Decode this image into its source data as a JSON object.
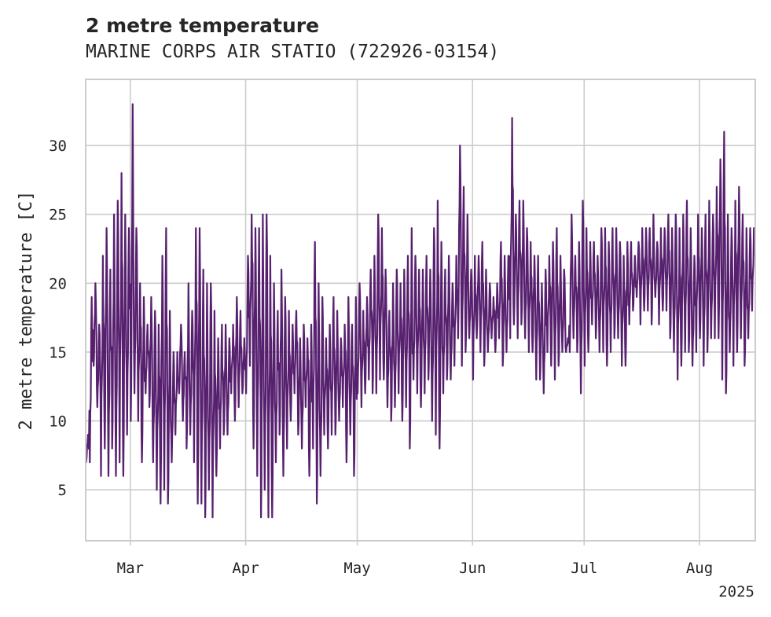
{
  "chart_data": {
    "type": "line",
    "title": "2 metre temperature",
    "subtitle": "MARINE CORPS AIR STATIO (722926-03154)",
    "xlabel": "",
    "ylabel": "2 metre temperature [C]",
    "x_range": [
      "2025-02-17",
      "2025-08-16"
    ],
    "ylim": [
      1.3,
      34.8
    ],
    "x_ticks": [
      {
        "date": "2025-03-01",
        "label": "Mar"
      },
      {
        "date": "2025-04-01",
        "label": "Apr"
      },
      {
        "date": "2025-05-01",
        "label": "May"
      },
      {
        "date": "2025-06-01",
        "label": "Jun"
      },
      {
        "date": "2025-07-01",
        "label": "Jul"
      },
      {
        "date": "2025-08-01",
        "label": "Aug"
      }
    ],
    "x_offset_label": "2025",
    "y_ticks": [
      5,
      10,
      15,
      20,
      25,
      30
    ],
    "grid": true,
    "color": "#57206f",
    "series": [
      {
        "name": "",
        "x": [
          "2025-02-17",
          "2025-02-18",
          "2025-02-19",
          "2025-02-20",
          "2025-02-21",
          "2025-02-22",
          "2025-02-23",
          "2025-02-24",
          "2025-02-25",
          "2025-02-26",
          "2025-02-27",
          "2025-02-28",
          "2025-03-01",
          "2025-03-02",
          "2025-03-03",
          "2025-03-04",
          "2025-03-05",
          "2025-03-06",
          "2025-03-07",
          "2025-03-08",
          "2025-03-09",
          "2025-03-10",
          "2025-03-11",
          "2025-03-12",
          "2025-03-13",
          "2025-03-14",
          "2025-03-15",
          "2025-03-16",
          "2025-03-17",
          "2025-03-18",
          "2025-03-19",
          "2025-03-20",
          "2025-03-21",
          "2025-03-22",
          "2025-03-23",
          "2025-03-24",
          "2025-03-25",
          "2025-03-26",
          "2025-03-27",
          "2025-03-28",
          "2025-03-29",
          "2025-03-30",
          "2025-03-31",
          "2025-04-01",
          "2025-04-02",
          "2025-04-03",
          "2025-04-04",
          "2025-04-05",
          "2025-04-06",
          "2025-04-07",
          "2025-04-08",
          "2025-04-09",
          "2025-04-10",
          "2025-04-11",
          "2025-04-12",
          "2025-04-13",
          "2025-04-14",
          "2025-04-15",
          "2025-04-16",
          "2025-04-17",
          "2025-04-18",
          "2025-04-19",
          "2025-04-20",
          "2025-04-21",
          "2025-04-22",
          "2025-04-23",
          "2025-04-24",
          "2025-04-25",
          "2025-04-26",
          "2025-04-27",
          "2025-04-28",
          "2025-04-29",
          "2025-04-30",
          "2025-05-01",
          "2025-05-02",
          "2025-05-03",
          "2025-05-04",
          "2025-05-05",
          "2025-05-06",
          "2025-05-07",
          "2025-05-08",
          "2025-05-09",
          "2025-05-10",
          "2025-05-11",
          "2025-05-12",
          "2025-05-13",
          "2025-05-14",
          "2025-05-15",
          "2025-05-16",
          "2025-05-17",
          "2025-05-18",
          "2025-05-19",
          "2025-05-20",
          "2025-05-21",
          "2025-05-22",
          "2025-05-23",
          "2025-05-24",
          "2025-05-25",
          "2025-05-26",
          "2025-05-27",
          "2025-05-28",
          "2025-05-29",
          "2025-05-30",
          "2025-05-31",
          "2025-06-01",
          "2025-06-02",
          "2025-06-03",
          "2025-06-04",
          "2025-06-05",
          "2025-06-06",
          "2025-06-07",
          "2025-06-08",
          "2025-06-09",
          "2025-06-10",
          "2025-06-11",
          "2025-06-12",
          "2025-06-13",
          "2025-06-14",
          "2025-06-15",
          "2025-06-16",
          "2025-06-17",
          "2025-06-18",
          "2025-06-19",
          "2025-06-20",
          "2025-06-21",
          "2025-06-22",
          "2025-06-23",
          "2025-06-24",
          "2025-06-25",
          "2025-06-26",
          "2025-06-27",
          "2025-06-28",
          "2025-06-29",
          "2025-06-30",
          "2025-07-01",
          "2025-07-02",
          "2025-07-03",
          "2025-07-04",
          "2025-07-05",
          "2025-07-06",
          "2025-07-07",
          "2025-07-08",
          "2025-07-09",
          "2025-07-10",
          "2025-07-11",
          "2025-07-12",
          "2025-07-13",
          "2025-07-14",
          "2025-07-15",
          "2025-07-16",
          "2025-07-17",
          "2025-07-18",
          "2025-07-19",
          "2025-07-20",
          "2025-07-21",
          "2025-07-22",
          "2025-07-23",
          "2025-07-24",
          "2025-07-25",
          "2025-07-26",
          "2025-07-27",
          "2025-07-28",
          "2025-07-29",
          "2025-07-30",
          "2025-07-31",
          "2025-08-01",
          "2025-08-02",
          "2025-08-03",
          "2025-08-04",
          "2025-08-05",
          "2025-08-06",
          "2025-08-07",
          "2025-08-08",
          "2025-08-09",
          "2025-08-10",
          "2025-08-11",
          "2025-08-12",
          "2025-08-13",
          "2025-08-14",
          "2025-08-15"
        ],
        "min": [
          7,
          7,
          14,
          11,
          6,
          8,
          6,
          8,
          6,
          7,
          6,
          9,
          10,
          12,
          10,
          7,
          12,
          11,
          7,
          5,
          4,
          5,
          4,
          7,
          9,
          12,
          10,
          8,
          9,
          7,
          4,
          4,
          3,
          5,
          3,
          6,
          8,
          9,
          9,
          12,
          10,
          11,
          12,
          12,
          14,
          8,
          6,
          3,
          5,
          3,
          3,
          7,
          9,
          6,
          8,
          10,
          12,
          9,
          8,
          11,
          6,
          8,
          4,
          6,
          9,
          8,
          9,
          9,
          10,
          11,
          7,
          9,
          6,
          12,
          11,
          12,
          13,
          12,
          12,
          13,
          13,
          11,
          10,
          11,
          12,
          10,
          11,
          8,
          13,
          12,
          11,
          12,
          13,
          10,
          9,
          8,
          12,
          13,
          13,
          14,
          16,
          14,
          15,
          16,
          13,
          16,
          15,
          14,
          15,
          16,
          15,
          16,
          14,
          15,
          16,
          17,
          16,
          17,
          16,
          15,
          15,
          13,
          13,
          12,
          15,
          14,
          13,
          14,
          15,
          15,
          15,
          16,
          15,
          12,
          14,
          15,
          17,
          16,
          15,
          15,
          14,
          15,
          16,
          16,
          14,
          14,
          17,
          18,
          19,
          17,
          18,
          18,
          17,
          19,
          17,
          18,
          18,
          16,
          15,
          13,
          14,
          15,
          15,
          14,
          15,
          16,
          14,
          15,
          16,
          16,
          16,
          13,
          12,
          15,
          14,
          15,
          16,
          14,
          16,
          18,
          19
        ],
        "max": [
          9,
          19,
          20,
          17,
          22,
          24,
          21,
          25,
          26,
          28,
          25,
          24,
          33,
          24,
          20,
          19,
          17,
          19,
          18,
          17,
          22,
          24,
          18,
          15,
          15,
          17,
          15,
          20,
          18,
          24,
          24,
          21,
          20,
          20,
          18,
          16,
          17,
          17,
          16,
          17,
          19,
          18,
          16,
          22,
          25,
          24,
          24,
          25,
          25,
          22,
          20,
          18,
          21,
          19,
          18,
          17,
          18,
          16,
          17,
          16,
          17,
          23,
          20,
          19,
          16,
          17,
          19,
          18,
          16,
          17,
          19,
          17,
          19,
          20,
          18,
          19,
          21,
          22,
          25,
          24,
          21,
          18,
          20,
          21,
          20,
          21,
          22,
          24,
          22,
          21,
          21,
          22,
          21,
          24,
          26,
          23,
          21,
          22,
          20,
          22,
          30,
          27,
          25,
          21,
          22,
          22,
          23,
          21,
          20,
          19,
          20,
          23,
          22,
          22,
          32,
          25,
          26,
          26,
          24,
          23,
          22,
          22,
          20,
          21,
          22,
          23,
          24,
          22,
          21,
          16,
          25,
          22,
          23,
          26,
          24,
          23,
          23,
          22,
          24,
          24,
          23,
          24,
          24,
          23,
          22,
          23,
          23,
          22,
          23,
          24,
          24,
          24,
          25,
          23,
          24,
          24,
          25,
          24,
          25,
          24,
          25,
          26,
          24,
          22,
          25,
          24,
          25,
          26,
          25,
          27,
          29,
          31,
          25,
          24,
          26,
          27,
          25,
          24,
          24,
          24,
          23
        ]
      }
    ]
  }
}
